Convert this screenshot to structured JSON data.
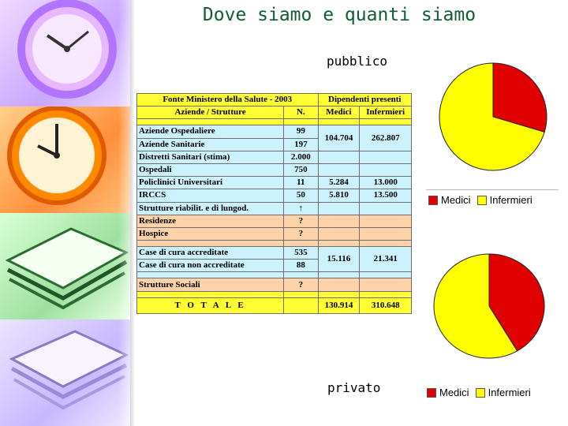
{
  "slide": {
    "title": "Dove siamo e quanti siamo",
    "label_public": "pubblico",
    "label_private": "privato"
  },
  "colors": {
    "medici": "#e00000",
    "infermieri": "#ffff00",
    "title": "#0f5c33"
  },
  "table": {
    "header1": {
      "source": "Fonte Ministero della Salute - 2003",
      "employees": "Dipendenti presenti"
    },
    "header2": {
      "structures": "Aziende / Strutture",
      "n": "N.",
      "medici": "Medici",
      "infermieri": "Infermieri"
    },
    "rows": [
      {
        "name": "Aziende Ospedaliere",
        "n": "99"
      },
      {
        "name": "Aziende Sanitarie",
        "n": "197"
      },
      {
        "name": "Distretti Sanitari (stima)",
        "n": "2.000"
      },
      {
        "name": "Ospedali",
        "n": "750"
      },
      {
        "name": "Policlinici Universitari",
        "n": "11"
      },
      {
        "name": "IRCCS",
        "n": "50"
      },
      {
        "name": "Strutture riabilit. e di lungod.",
        "n": "↑"
      },
      {
        "name": "Residenze",
        "n": "?"
      },
      {
        "name": "Hospice",
        "n": "?"
      },
      {
        "name": "Case di cura accreditate",
        "n": "535"
      },
      {
        "name": "Case di cura non accreditate",
        "n": "88"
      },
      {
        "name": "Strutture Sociali",
        "n": "?"
      }
    ],
    "groups": {
      "aziende": {
        "medici": "104.704",
        "infermieri": "262.807"
      },
      "policlinici": {
        "medici": "5.284",
        "infermieri": "13.000"
      },
      "irccs": {
        "medici": "5.810",
        "infermieri": "13.500"
      },
      "case_cura": {
        "medici": "15.116",
        "infermieri": "21.341"
      }
    },
    "total": {
      "label": "T O T A L E",
      "medici": "130.914",
      "infermieri": "310.648"
    }
  },
  "chart_data": [
    {
      "type": "pie",
      "categories": [
        "Medici",
        "Infermieri"
      ],
      "values": [
        29.6,
        70.4
      ],
      "legend": "bottom",
      "colors": [
        "#e00000",
        "#ffff00"
      ]
    },
    {
      "type": "pie",
      "categories": [
        "Medici",
        "Infermieri"
      ],
      "values": [
        41.5,
        58.5
      ],
      "legend": "bottom",
      "colors": [
        "#e00000",
        "#ffff00"
      ]
    }
  ]
}
